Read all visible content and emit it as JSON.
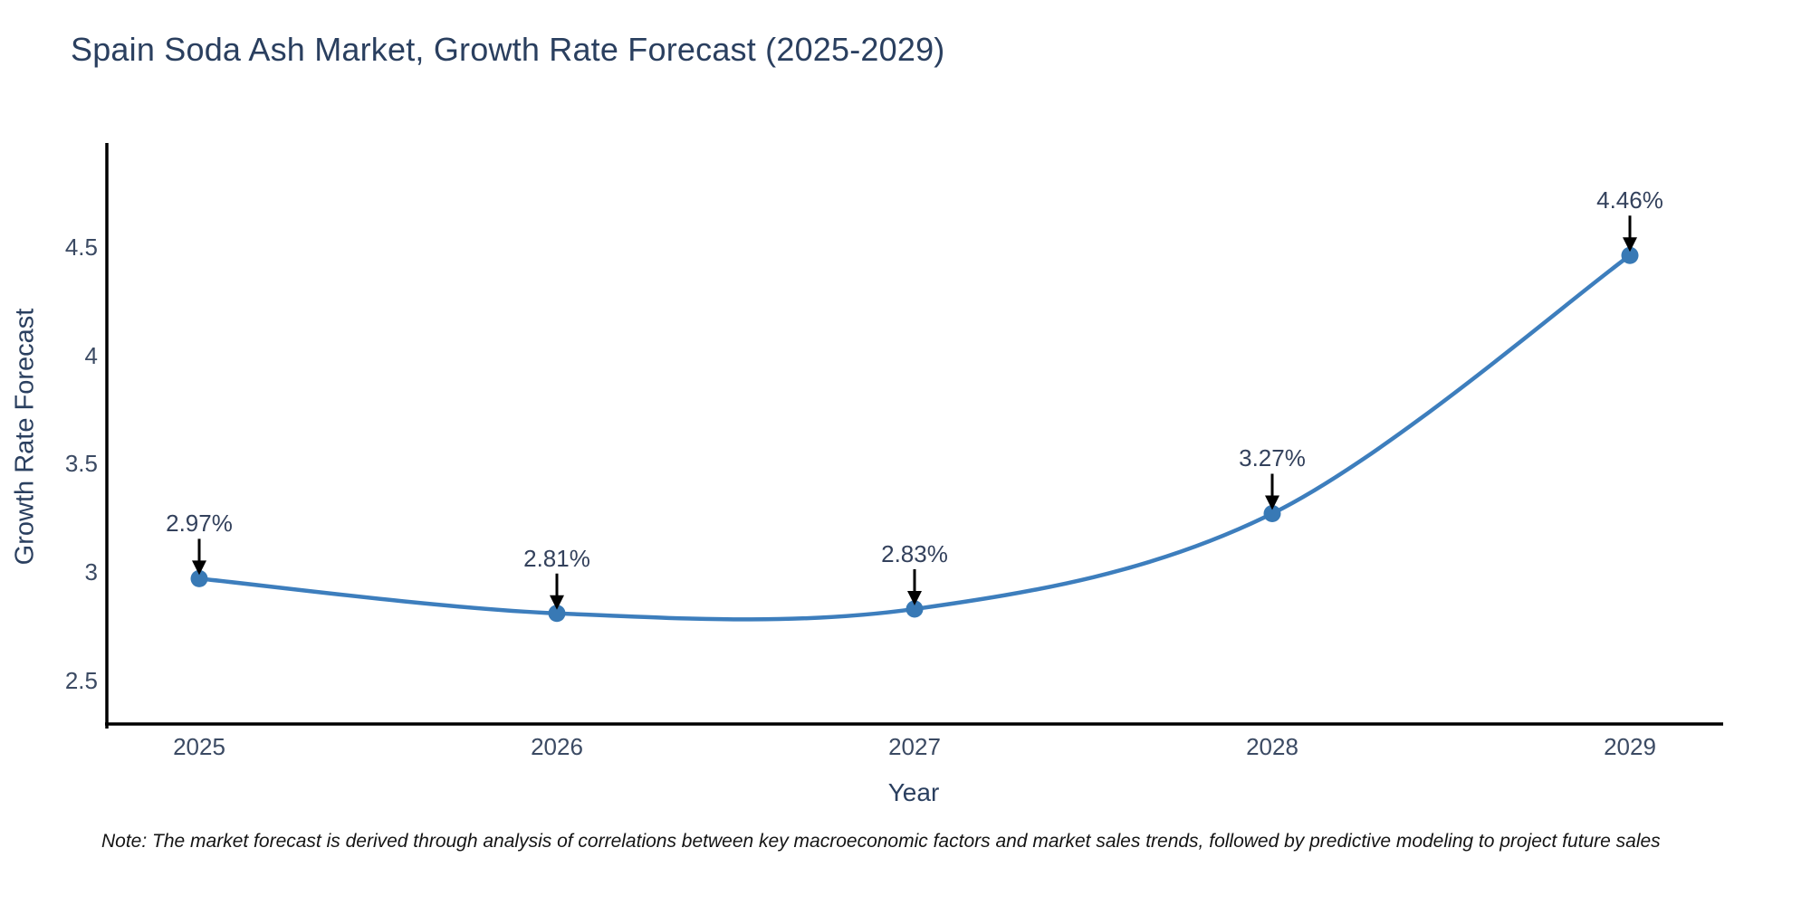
{
  "title": "Spain Soda Ash Market, Growth Rate Forecast (2025-2029)",
  "note": "Note: The market forecast is derived through analysis of correlations between key macroeconomic factors and market sales trends, followed by predictive modeling to project future sales",
  "chart_data": {
    "type": "line",
    "title": "Spain Soda Ash Market, Growth Rate Forecast (2025-2029)",
    "xlabel": "Year",
    "ylabel": "Growth Rate Forecast",
    "categories": [
      "2025",
      "2026",
      "2027",
      "2028",
      "2029"
    ],
    "values": [
      2.97,
      2.81,
      2.83,
      3.27,
      4.46
    ],
    "point_labels": [
      "2.97%",
      "2.81%",
      "2.83%",
      "3.27%",
      "4.46%"
    ],
    "yticks": [
      2.5,
      3.0,
      3.5,
      4.0,
      4.5
    ],
    "ytick_labels": [
      "2.5",
      "3",
      "3.5",
      "4",
      "4.5"
    ],
    "ylim": [
      2.3,
      4.97
    ],
    "grid": false,
    "legend": "none",
    "line_shape": "spline",
    "colors": {
      "line": "#3d7ebd",
      "marker": "#3879b5",
      "axis": "#000000",
      "arrow": "#000000",
      "title_text": "#2a3f5f",
      "tick_text": "#3b4a63",
      "annotation_text": "#33415c"
    }
  }
}
